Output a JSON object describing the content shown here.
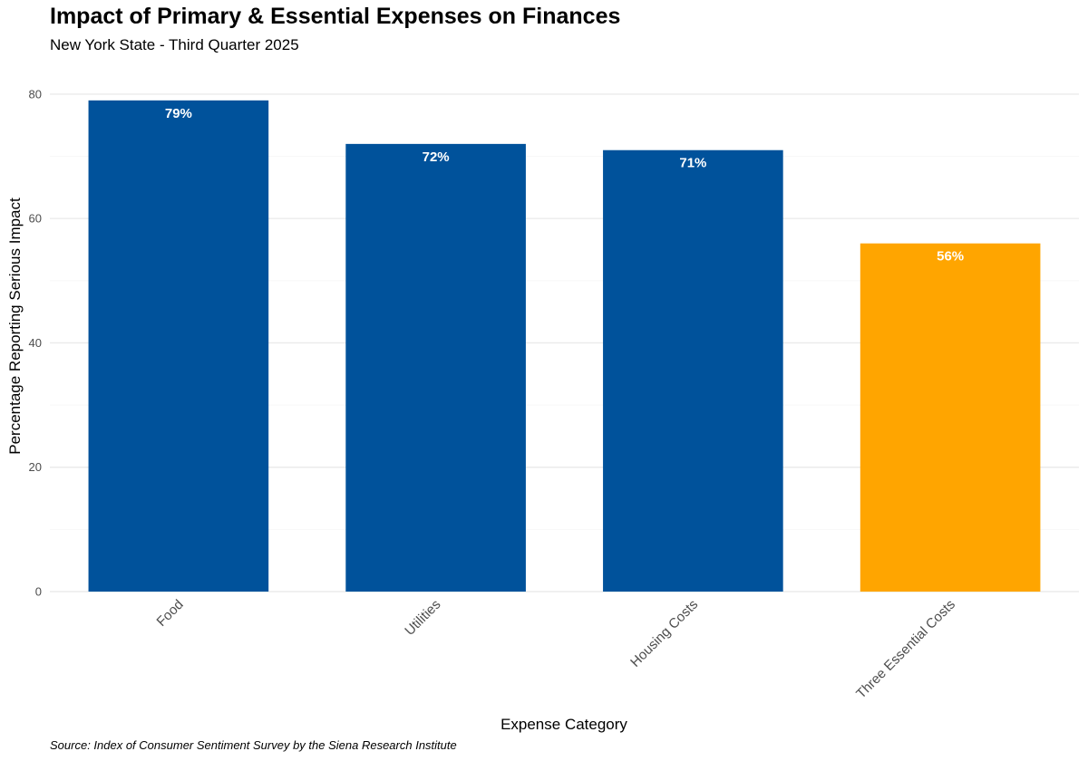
{
  "chart_data": {
    "type": "bar",
    "title": "Impact of Primary & Essential Expenses on Finances",
    "subtitle": "New York State - Third Quarter 2025",
    "xlabel": "Expense Category",
    "ylabel": "Percentage Reporting Serious Impact",
    "categories": [
      "Food",
      "Utilities",
      "Housing Costs",
      "Three Essential Costs"
    ],
    "values": [
      79,
      72,
      71,
      56
    ],
    "data_labels": [
      "79%",
      "72%",
      "71%",
      "56%"
    ],
    "bar_colors": [
      "#00529b",
      "#00529b",
      "#00529b",
      "#ffa500"
    ],
    "ylim": [
      0,
      80
    ],
    "yticks": [
      0,
      20,
      40,
      60,
      80
    ],
    "grid": true,
    "legend": "none",
    "source": "Source: Index of Consumer Sentiment Survey by the Siena Research Institute"
  }
}
